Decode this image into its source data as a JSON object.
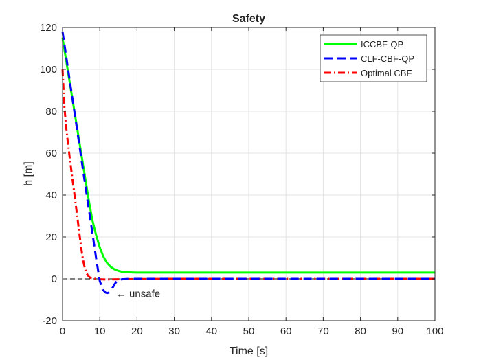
{
  "chart_data": {
    "type": "line",
    "title": "Safety",
    "xlabel": "Time [s]",
    "ylabel": "h [m]",
    "xlim": [
      0,
      100
    ],
    "ylim": [
      -20,
      120
    ],
    "xticks": [
      0,
      10,
      20,
      30,
      40,
      50,
      60,
      70,
      80,
      90,
      100
    ],
    "yticks": [
      -20,
      0,
      20,
      40,
      60,
      80,
      100,
      120
    ],
    "grid": true,
    "legend_position": "top-right",
    "reference_line": {
      "y": 0,
      "style": "dashed",
      "color": "#000000"
    },
    "annotation": {
      "text": "← unsafe",
      "x": 14,
      "y": -7
    },
    "series": [
      {
        "name": "ICCBF-QP",
        "color": "#00ff00",
        "style": "solid",
        "x": [
          0,
          1,
          2,
          3,
          4,
          5,
          6,
          7,
          8,
          9,
          10,
          11,
          12,
          13,
          14,
          15,
          16,
          17,
          18,
          19,
          20,
          22,
          25,
          30,
          40,
          60,
          80,
          100
        ],
        "y": [
          115,
          104,
          93,
          82,
          71,
          60,
          49,
          38,
          28,
          21,
          15,
          10.5,
          7.5,
          5.6,
          4.5,
          3.8,
          3.4,
          3.2,
          3.1,
          3.05,
          3,
          3,
          3,
          3,
          3,
          3,
          3,
          3
        ]
      },
      {
        "name": "CLF-CBF-QP",
        "color": "#0000ff",
        "style": "dashed",
        "x": [
          0,
          1,
          2,
          3,
          4,
          5,
          6,
          7,
          8,
          9,
          10,
          10.5,
          11,
          11.5,
          12,
          12.5,
          13,
          13.5,
          14,
          14.5,
          15,
          16,
          18,
          20,
          30,
          50,
          70,
          100
        ],
        "y": [
          118,
          106,
          94,
          82,
          70,
          58,
          46,
          34,
          22,
          10,
          -1,
          -3.5,
          -5.5,
          -6.5,
          -6.8,
          -6.5,
          -5.5,
          -4,
          -2.5,
          -1.2,
          -0.5,
          -0.2,
          0,
          0,
          0,
          0,
          0,
          0
        ]
      },
      {
        "name": "Optimal CBF",
        "color": "#ff0000",
        "style": "dashdot",
        "x": [
          0,
          0.5,
          1,
          1.5,
          2,
          2.5,
          3,
          3.5,
          4,
          4.5,
          5,
          5.5,
          6,
          6.5,
          7,
          7.5,
          8,
          9,
          10,
          12,
          15,
          20,
          30,
          50,
          70,
          100
        ],
        "y": [
          100,
          82,
          72,
          64,
          57,
          50,
          43,
          36,
          29,
          22,
          15,
          9,
          5,
          2.5,
          1.2,
          0.5,
          0.2,
          0,
          -0.2,
          -0.3,
          -0.2,
          -0.1,
          0,
          0,
          0,
          0
        ]
      }
    ]
  }
}
